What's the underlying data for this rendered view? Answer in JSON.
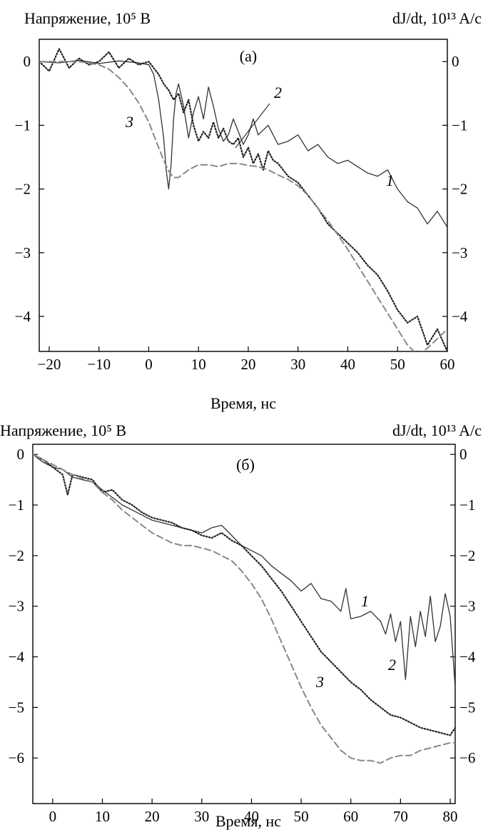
{
  "chart_data": [
    {
      "type": "line",
      "panel_label": "(а)",
      "left_axis_label": "Напряжение, 10⁵ В",
      "right_axis_label": "dJ/dt, 10¹³ A/c",
      "xlabel": "Время, нс",
      "xlim": [
        -22,
        60
      ],
      "ylim": [
        -4.55,
        0.35
      ],
      "xticks": [
        "-20",
        "-10",
        "0",
        "10",
        "20",
        "30",
        "40",
        "50",
        "60"
      ],
      "xtick_values": [
        -20,
        -10,
        0,
        10,
        20,
        30,
        40,
        50,
        60
      ],
      "yticks": [
        "0",
        "-1",
        "-2",
        "-3",
        "-4"
      ],
      "ytick_values": [
        0,
        -1,
        -2,
        -3,
        -4
      ],
      "grid": false,
      "series": [
        {
          "name": "1",
          "style": "solid",
          "x": [
            -22,
            -18,
            -14,
            -10,
            -6,
            -2,
            0,
            1,
            2,
            3,
            3.5,
            4,
            4.5,
            5,
            5.5,
            6,
            7,
            8,
            9,
            10,
            11,
            12,
            13,
            14,
            15,
            16,
            17,
            18,
            19,
            20,
            21,
            22,
            24,
            26,
            28,
            30,
            32,
            34,
            36,
            38,
            40,
            42,
            44,
            46,
            48,
            50,
            52,
            54,
            56,
            58,
            60
          ],
          "values": [
            0,
            -0.02,
            0.02,
            -0.03,
            0.01,
            -0.02,
            -0.05,
            -0.2,
            -0.6,
            -1.2,
            -1.7,
            -2.0,
            -1.6,
            -0.9,
            -0.5,
            -0.35,
            -0.7,
            -1.2,
            -0.8,
            -0.55,
            -0.9,
            -0.4,
            -0.7,
            -1.05,
            -1.25,
            -1.15,
            -0.9,
            -1.1,
            -1.3,
            -1.15,
            -0.9,
            -1.15,
            -1.0,
            -1.3,
            -1.25,
            -1.15,
            -1.4,
            -1.3,
            -1.5,
            -1.6,
            -1.55,
            -1.65,
            -1.75,
            -1.8,
            -1.7,
            -2.0,
            -2.2,
            -2.3,
            -2.55,
            -2.35,
            -2.6
          ]
        },
        {
          "name": "2",
          "style": "dotted",
          "x": [
            -22,
            -20,
            -18,
            -16,
            -14,
            -12,
            -10,
            -8,
            -6,
            -4,
            -2,
            0,
            1,
            2,
            3,
            4,
            5,
            6,
            7,
            8,
            9,
            10,
            11,
            12,
            13,
            14,
            15,
            16,
            17,
            18,
            19,
            20,
            21,
            22,
            23,
            24,
            25,
            26,
            28,
            30,
            32,
            34,
            36,
            38,
            40,
            42,
            44,
            46,
            48,
            50,
            52,
            54,
            56,
            58,
            60
          ],
          "values": [
            0,
            -0.15,
            0.2,
            -0.1,
            0.05,
            -0.05,
            0.0,
            0.15,
            -0.1,
            0.05,
            -0.05,
            0.0,
            -0.1,
            -0.2,
            -0.35,
            -0.45,
            -0.6,
            -0.5,
            -0.8,
            -0.6,
            -1.0,
            -1.25,
            -1.1,
            -1.2,
            -0.95,
            -1.2,
            -1.05,
            -1.25,
            -1.3,
            -1.2,
            -1.5,
            -1.35,
            -1.6,
            -1.45,
            -1.7,
            -1.4,
            -1.55,
            -1.6,
            -1.8,
            -1.9,
            -2.1,
            -2.3,
            -2.55,
            -2.7,
            -2.85,
            -3.0,
            -3.2,
            -3.35,
            -3.6,
            -3.9,
            -4.1,
            -4.0,
            -4.45,
            -4.2,
            -4.55
          ]
        },
        {
          "name": "3",
          "style": "dashed",
          "x": [
            -22,
            -18,
            -14,
            -10,
            -8,
            -6,
            -4,
            -2,
            0,
            1,
            2,
            3,
            4,
            5,
            6,
            8,
            10,
            12,
            14,
            16,
            18,
            20,
            22,
            24,
            26,
            28,
            30,
            32,
            34,
            36,
            38,
            40,
            42,
            44,
            46,
            48,
            50,
            52,
            54,
            56,
            58,
            60
          ],
          "values": [
            0,
            0,
            0,
            -0.05,
            -0.12,
            -0.25,
            -0.42,
            -0.65,
            -0.95,
            -1.15,
            -1.35,
            -1.55,
            -1.72,
            -1.82,
            -1.82,
            -1.7,
            -1.62,
            -1.62,
            -1.65,
            -1.6,
            -1.6,
            -1.63,
            -1.65,
            -1.7,
            -1.78,
            -1.85,
            -1.95,
            -2.1,
            -2.3,
            -2.5,
            -2.72,
            -2.95,
            -3.2,
            -3.45,
            -3.7,
            -3.95,
            -4.2,
            -4.45,
            -4.6,
            -4.5,
            -4.35,
            -4.2
          ]
        }
      ]
    },
    {
      "type": "line",
      "panel_label": "(б)",
      "left_axis_label": "Напряжение, 10⁵ В",
      "right_axis_label": "dJ/dt, 10¹³ A/c",
      "xlabel": "Время, нс",
      "xlim": [
        -4,
        81
      ],
      "ylim": [
        -6.9,
        0.2
      ],
      "xticks": [
        "0",
        "10",
        "20",
        "30",
        "40",
        "50",
        "60",
        "70",
        "80"
      ],
      "xtick_values": [
        0,
        10,
        20,
        30,
        40,
        50,
        60,
        70,
        80
      ],
      "yticks": [
        "0",
        "-1",
        "-2",
        "-3",
        "-4",
        "-5",
        "-6"
      ],
      "ytick_values": [
        0,
        -1,
        -2,
        -3,
        -4,
        -5,
        -6
      ],
      "grid": false,
      "series": [
        {
          "name": "1",
          "style": "solid",
          "x": [
            -4,
            -2,
            0,
            2,
            4,
            6,
            8,
            10,
            12,
            14,
            16,
            18,
            20,
            22,
            24,
            26,
            28,
            30,
            32,
            34,
            36,
            38,
            40,
            42,
            44,
            46,
            48,
            50,
            52,
            54,
            56,
            58,
            59,
            60,
            62,
            64,
            66,
            67,
            68,
            69,
            70,
            71,
            72,
            73,
            74,
            75,
            76,
            77,
            78,
            79,
            80,
            81
          ],
          "values": [
            0,
            -0.15,
            -0.25,
            -0.3,
            -0.45,
            -0.5,
            -0.55,
            -0.7,
            -0.85,
            -1.0,
            -1.1,
            -1.2,
            -1.3,
            -1.35,
            -1.4,
            -1.45,
            -1.5,
            -1.55,
            -1.45,
            -1.4,
            -1.6,
            -1.8,
            -1.9,
            -2.0,
            -2.2,
            -2.35,
            -2.5,
            -2.7,
            -2.55,
            -2.85,
            -2.9,
            -3.1,
            -2.65,
            -3.25,
            -3.2,
            -3.1,
            -3.3,
            -3.55,
            -3.15,
            -3.7,
            -3.3,
            -4.45,
            -3.2,
            -3.8,
            -3.1,
            -3.6,
            -2.8,
            -3.7,
            -3.4,
            -2.75,
            -3.2,
            -4.6
          ]
        },
        {
          "name": "2",
          "style": "dotted",
          "x": [
            -4,
            -2,
            0,
            2,
            3,
            4,
            6,
            8,
            10,
            12,
            14,
            16,
            18,
            20,
            22,
            24,
            26,
            28,
            30,
            32,
            34,
            36,
            38,
            40,
            42,
            44,
            46,
            48,
            50,
            52,
            54,
            56,
            58,
            60,
            62,
            64,
            66,
            68,
            70,
            72,
            74,
            76,
            78,
            80,
            81
          ],
          "values": [
            0,
            -0.1,
            -0.25,
            -0.4,
            -0.8,
            -0.4,
            -0.45,
            -0.5,
            -0.75,
            -0.7,
            -0.9,
            -1.0,
            -1.15,
            -1.25,
            -1.3,
            -1.35,
            -1.45,
            -1.5,
            -1.6,
            -1.65,
            -1.55,
            -1.7,
            -1.8,
            -2.0,
            -2.2,
            -2.45,
            -2.7,
            -3.0,
            -3.3,
            -3.6,
            -3.9,
            -4.1,
            -4.3,
            -4.5,
            -4.65,
            -4.85,
            -5.0,
            -5.15,
            -5.2,
            -5.3,
            -5.4,
            -5.45,
            -5.5,
            -5.55,
            -5.4
          ]
        },
        {
          "name": "3",
          "style": "dashed",
          "x": [
            -4,
            0,
            4,
            8,
            10,
            12,
            14,
            16,
            18,
            20,
            22,
            24,
            26,
            28,
            30,
            32,
            34,
            36,
            38,
            40,
            42,
            44,
            46,
            48,
            50,
            52,
            54,
            56,
            58,
            60,
            62,
            64,
            66,
            68,
            70,
            72,
            74,
            76,
            78,
            80,
            81
          ],
          "values": [
            0,
            -0.2,
            -0.4,
            -0.55,
            -0.75,
            -0.9,
            -1.1,
            -1.25,
            -1.4,
            -1.55,
            -1.65,
            -1.75,
            -1.8,
            -1.8,
            -1.85,
            -1.9,
            -2.0,
            -2.1,
            -2.3,
            -2.55,
            -2.85,
            -3.25,
            -3.7,
            -4.15,
            -4.6,
            -5.0,
            -5.35,
            -5.6,
            -5.85,
            -6.0,
            -6.05,
            -6.05,
            -6.1,
            -6.0,
            -5.95,
            -5.95,
            -5.85,
            -5.8,
            -5.75,
            -5.7,
            -5.7
          ]
        }
      ]
    }
  ]
}
